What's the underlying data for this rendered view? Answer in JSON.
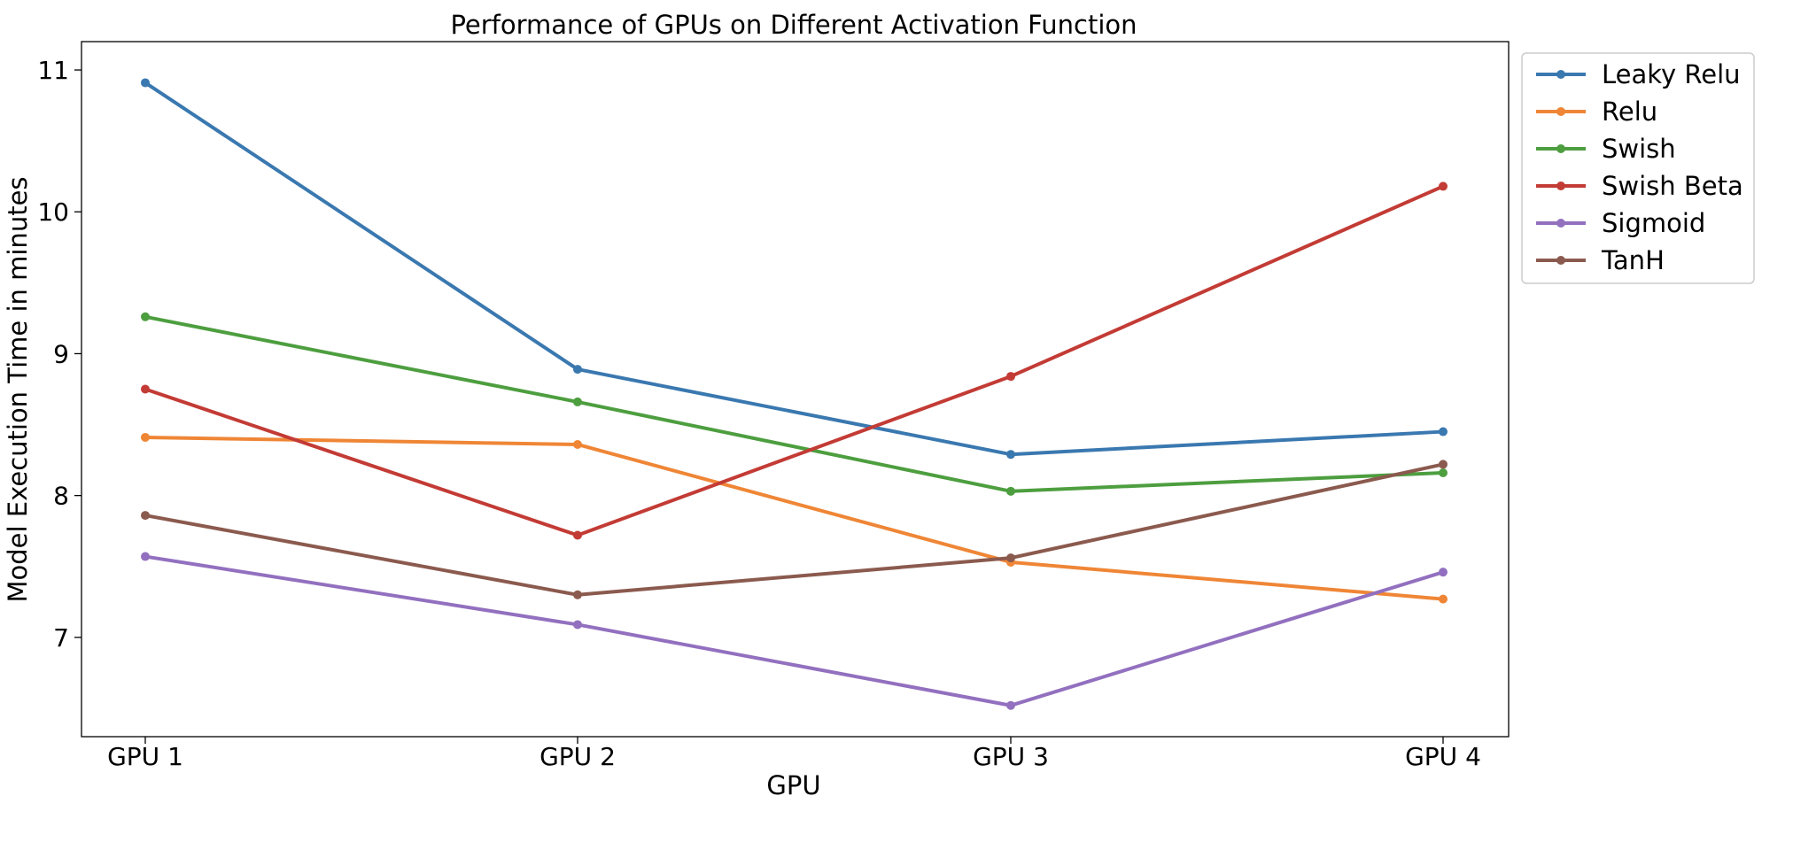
{
  "chart_data": {
    "type": "line",
    "title": "Performance of GPUs on Different Activation Function",
    "xlabel": "GPU",
    "ylabel": "Model Execution Time in minutes",
    "categories": [
      "GPU 1",
      "GPU 2",
      "GPU 3",
      "GPU 4"
    ],
    "ylim": [
      6.3,
      11.2
    ],
    "yticks": [
      7,
      8,
      9,
      10,
      11
    ],
    "grid": false,
    "legend_position": "outside-top-right",
    "series": [
      {
        "name": "Leaky Relu",
        "color": "#3a78b0",
        "values": [
          10.91,
          8.89,
          8.29,
          8.45
        ]
      },
      {
        "name": "Relu",
        "color": "#ef8636",
        "values": [
          8.41,
          8.36,
          7.53,
          7.27
        ]
      },
      {
        "name": "Swish",
        "color": "#4d9e3f",
        "values": [
          9.26,
          8.66,
          8.03,
          8.16
        ]
      },
      {
        "name": "Swish Beta",
        "color": "#c33b35",
        "values": [
          8.75,
          7.72,
          8.84,
          10.18
        ]
      },
      {
        "name": "Sigmoid",
        "color": "#9270bf",
        "values": [
          7.57,
          7.09,
          6.52,
          7.46
        ]
      },
      {
        "name": "TanH",
        "color": "#8b5a4e",
        "values": [
          7.86,
          7.3,
          7.56,
          8.22
        ]
      }
    ]
  }
}
